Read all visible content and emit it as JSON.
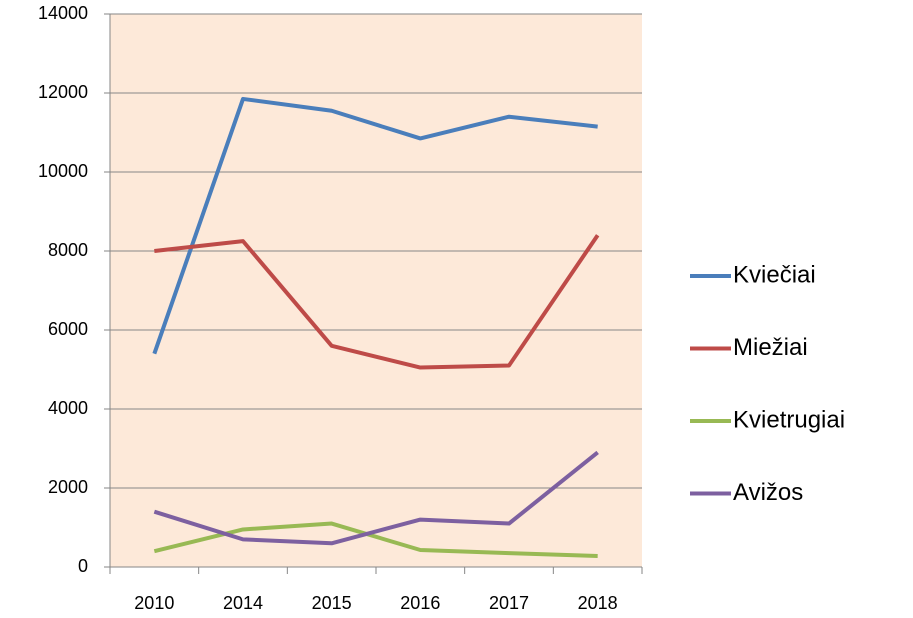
{
  "chart_data": {
    "type": "line",
    "categories": [
      "2010",
      "2014",
      "2015",
      "2016",
      "2017",
      "2018"
    ],
    "series": [
      {
        "name": "Kviečiai",
        "color": "#4a7ebb",
        "values": [
          5400,
          11850,
          11550,
          10850,
          11400,
          11150
        ]
      },
      {
        "name": "Miežiai",
        "color": "#be4b48",
        "values": [
          8000,
          8250,
          5600,
          5050,
          5100,
          8400
        ]
      },
      {
        "name": "Kvietrugiai",
        "color": "#98b954",
        "values": [
          400,
          950,
          1100,
          430,
          350,
          280
        ]
      },
      {
        "name": "Avižos",
        "color": "#7d60a0",
        "values": [
          1400,
          700,
          600,
          1200,
          1100,
          2900
        ]
      }
    ],
    "ylim": [
      0,
      14000
    ],
    "yticks": [
      0,
      2000,
      4000,
      6000,
      8000,
      10000,
      12000,
      14000
    ],
    "grid": true,
    "legend": "right",
    "background": "#fde9d9"
  }
}
